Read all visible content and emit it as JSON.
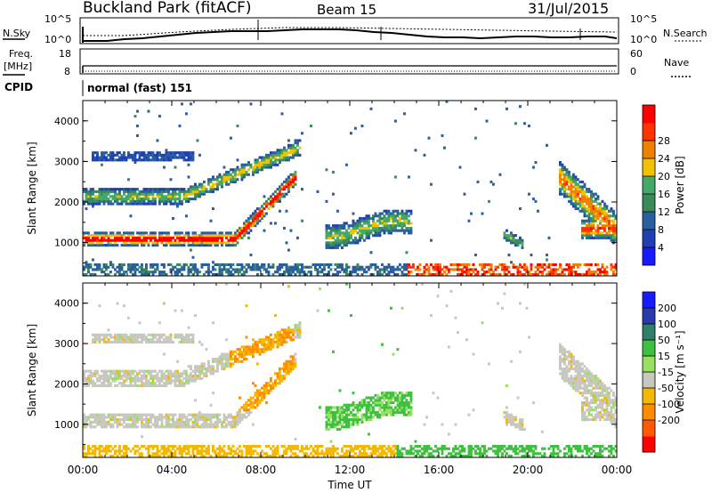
{
  "header": {
    "title": "Buckland Park (fitACF)",
    "beam": "Beam 15",
    "date": "31/Jul/2015"
  },
  "status_panels": {
    "nsky_label": "N.Sky",
    "nsky_ticks": [
      "10^5",
      "10^0"
    ],
    "nsearch_label": "N.Search",
    "nsearch_ticks": [
      "10^5",
      "10^0"
    ],
    "freq_label_1": "Freq.",
    "freq_label_2": "[MHz]",
    "freq_ticks": [
      "18",
      "8"
    ],
    "nave_label": "Nave",
    "nave_ticks": [
      "60",
      "0"
    ],
    "cpid_label": "CPID",
    "cpid_value": "normal (fast) 151"
  },
  "colors": {
    "power_scale": [
      "#1a1aff",
      "#1f3fb3",
      "#2a5f9f",
      "#3a8a5a",
      "#44a868",
      "#f2c200",
      "#f08000",
      "#ff3300",
      "#ff0000"
    ],
    "velocity_scale": [
      "#ff0000",
      "#ff5a00",
      "#ff8c00",
      "#f5b800",
      "#c8c8c0",
      "#98e060",
      "#40c040",
      "#2f7f6a",
      "#2a3aaa",
      "#1a1aff"
    ]
  },
  "chart_data": [
    {
      "type": "heatmap",
      "name": "power",
      "ylabel": "Slant Range [km]",
      "yticks": [
        "1000",
        "2000",
        "3000",
        "4000"
      ],
      "ylim": [
        180,
        4500
      ],
      "xlim_hours": [
        0,
        24
      ],
      "xticks": [
        "00:00",
        "04:00",
        "08:00",
        "12:00",
        "16:00",
        "20:00",
        "00:00"
      ],
      "colorbar_label": "Power [dB]",
      "colorbar_ticks": [
        "4",
        "8",
        "12",
        "16",
        "20",
        "24",
        "28"
      ],
      "colorbar_range": [
        0,
        32
      ]
    },
    {
      "type": "heatmap",
      "name": "velocity",
      "ylabel": "Slant Range [km]",
      "yticks": [
        "1000",
        "2000",
        "3000",
        "4000"
      ],
      "ylim": [
        180,
        4500
      ],
      "xlim_hours": [
        0,
        24
      ],
      "xticks": [
        "00:00",
        "04:00",
        "08:00",
        "12:00",
        "16:00",
        "20:00",
        "00:00"
      ],
      "xlabel": "Time UT",
      "colorbar_label": "Velocity [m s⁻¹]",
      "colorbar_ticks": [
        "200",
        "100",
        "50",
        "15",
        "-15",
        "-50",
        "-100",
        "-200"
      ]
    }
  ]
}
